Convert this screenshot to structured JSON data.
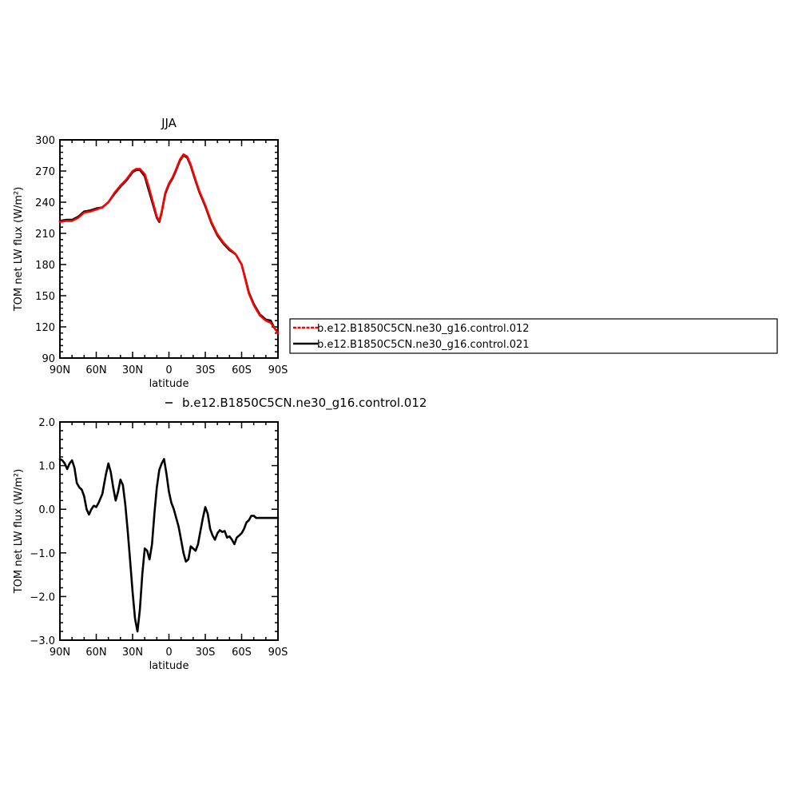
{
  "chart_data": [
    {
      "type": "line",
      "title": "JJA",
      "xlabel": "latitude",
      "ylabel": "TOM net LW flux (W/m²)",
      "xlim": [
        90,
        -90
      ],
      "ylim": [
        90,
        300
      ],
      "xticks": [
        {
          "value": 90,
          "label": "90N"
        },
        {
          "value": 60,
          "label": "60N"
        },
        {
          "value": 30,
          "label": "30N"
        },
        {
          "value": 0,
          "label": "0"
        },
        {
          "value": -30,
          "label": "30S"
        },
        {
          "value": -60,
          "label": "60S"
        },
        {
          "value": -90,
          "label": "90S"
        }
      ],
      "yticks": [
        {
          "value": 90,
          "label": "90"
        },
        {
          "value": 120,
          "label": "120"
        },
        {
          "value": 150,
          "label": "150"
        },
        {
          "value": 180,
          "label": "180"
        },
        {
          "value": 210,
          "label": "210"
        },
        {
          "value": 240,
          "label": "240"
        },
        {
          "value": 270,
          "label": "270"
        },
        {
          "value": 300,
          "label": "300"
        }
      ],
      "legend": {
        "placement": "right",
        "entries": [
          {
            "name": "b.e12.B1850C5CN.ne30_g16.control.012",
            "color": "#ff0000",
            "dash": "dashed"
          },
          {
            "name": "b.e12.B1850C5CN.ne30_g16.control.021",
            "color": "#000000",
            "dash": "solid"
          }
        ]
      },
      "series": [
        {
          "name": "b.e12.B1850C5CN.ne30_g16.control.021",
          "color": "#000000",
          "x": [
            90,
            85,
            80,
            75,
            70,
            65,
            60,
            55,
            50,
            45,
            40,
            35,
            30,
            27,
            24,
            20,
            17,
            13,
            10,
            8,
            6,
            3,
            0,
            -3,
            -6,
            -9,
            -12,
            -15,
            -18,
            -21,
            -25,
            -30,
            -35,
            -40,
            -45,
            -50,
            -55,
            -60,
            -63,
            -66,
            -70,
            -75,
            -80,
            -84,
            -87,
            -90
          ],
          "y": [
            222,
            223,
            223,
            226,
            231,
            232,
            234,
            235,
            240,
            248,
            255,
            261,
            269,
            271,
            271,
            265,
            253,
            237,
            225,
            221,
            230,
            248,
            257,
            263,
            271,
            280,
            285,
            283,
            275,
            264,
            250,
            236,
            220,
            208,
            200,
            194,
            190,
            180,
            167,
            153,
            142,
            132,
            127,
            126,
            119,
            115
          ]
        },
        {
          "name": "b.e12.B1850C5CN.ne30_g16.control.012",
          "color": "#ff0000",
          "x": [
            90,
            85,
            80,
            75,
            70,
            65,
            60,
            55,
            50,
            45,
            40,
            35,
            30,
            27,
            24,
            20,
            17,
            13,
            10,
            8,
            6,
            3,
            0,
            -3,
            -6,
            -9,
            -12,
            -15,
            -18,
            -21,
            -25,
            -30,
            -35,
            -40,
            -45,
            -50,
            -55,
            -60,
            -63,
            -66,
            -70,
            -75,
            -80,
            -84,
            -87,
            -90
          ],
          "y": [
            221,
            222,
            222,
            225,
            230,
            231,
            233,
            235,
            240,
            249,
            256,
            262,
            270,
            272,
            272,
            267,
            256,
            239,
            226,
            222,
            231,
            249,
            258,
            264,
            272,
            281,
            286,
            284,
            276,
            265,
            251,
            237,
            221,
            209,
            201,
            195,
            190,
            180,
            166,
            152,
            141,
            131,
            126,
            124,
            119,
            114
          ]
        }
      ]
    },
    {
      "type": "line",
      "title": "",
      "label": "b.e12.B1850C5CN.ne30_g16.control.012",
      "xlabel": "latitude",
      "ylabel": "TOM net LW flux (W/m²)",
      "xlim": [
        90,
        -90
      ],
      "ylim": [
        -3.0,
        2.0
      ],
      "xticks": [
        {
          "value": 90,
          "label": "90N"
        },
        {
          "value": 60,
          "label": "60N"
        },
        {
          "value": 30,
          "label": "30N"
        },
        {
          "value": 0,
          "label": "0"
        },
        {
          "value": -30,
          "label": "30S"
        },
        {
          "value": -60,
          "label": "60S"
        },
        {
          "value": -90,
          "label": "90S"
        }
      ],
      "yticks": [
        {
          "value": -3.0,
          "label": "−3.0"
        },
        {
          "value": -2.0,
          "label": "−2.0"
        },
        {
          "value": -1.0,
          "label": "−1.0"
        },
        {
          "value": 0.0,
          "label": "0.0"
        },
        {
          "value": 1.0,
          "label": "1.0"
        },
        {
          "value": 2.0,
          "label": "2.0"
        }
      ],
      "series": [
        {
          "color": "#000000",
          "x": [
            90,
            88,
            86,
            84,
            82,
            80,
            78,
            76,
            74,
            72,
            70,
            68,
            66,
            64,
            62,
            60,
            58,
            55,
            52,
            50,
            48,
            46,
            44,
            42,
            40,
            38,
            36,
            34,
            32,
            30,
            28,
            26,
            24,
            22,
            20,
            18,
            16,
            14,
            12,
            10,
            8,
            6,
            4,
            2,
            0,
            -2,
            -4,
            -6,
            -8,
            -10,
            -12,
            -14,
            -16,
            -18,
            -20,
            -22,
            -24,
            -26,
            -28,
            -30,
            -32,
            -34,
            -36,
            -38,
            -40,
            -42,
            -44,
            -46,
            -48,
            -50,
            -52,
            -54,
            -56,
            -58,
            -60,
            -62,
            -64,
            -66,
            -68,
            -70,
            -72,
            -74,
            -76,
            -78,
            -80,
            -82,
            -84,
            -86,
            -88,
            -90
          ],
          "y": [
            1.15,
            1.12,
            1.05,
            0.92,
            1.05,
            1.12,
            0.95,
            0.6,
            0.5,
            0.45,
            0.3,
            0.0,
            -0.12,
            0.0,
            0.08,
            0.05,
            0.15,
            0.35,
            0.8,
            1.05,
            0.85,
            0.5,
            0.2,
            0.4,
            0.68,
            0.55,
            0.1,
            -0.5,
            -1.2,
            -1.9,
            -2.5,
            -2.8,
            -2.3,
            -1.5,
            -0.9,
            -0.95,
            -1.15,
            -0.8,
            -0.1,
            0.5,
            0.9,
            1.05,
            1.15,
            0.8,
            0.4,
            0.15,
            0.0,
            -0.2,
            -0.4,
            -0.7,
            -1.0,
            -1.2,
            -1.15,
            -0.85,
            -0.9,
            -0.95,
            -0.8,
            -0.5,
            -0.2,
            0.05,
            -0.1,
            -0.45,
            -0.6,
            -0.7,
            -0.55,
            -0.48,
            -0.52,
            -0.5,
            -0.65,
            -0.62,
            -0.7,
            -0.8,
            -0.65,
            -0.6,
            -0.55,
            -0.45,
            -0.3,
            -0.25,
            -0.15,
            -0.15,
            -0.2,
            -0.2,
            -0.2,
            -0.2,
            -0.2,
            -0.2,
            -0.2,
            -0.2,
            -0.2,
            -0.2
          ]
        }
      ]
    }
  ]
}
